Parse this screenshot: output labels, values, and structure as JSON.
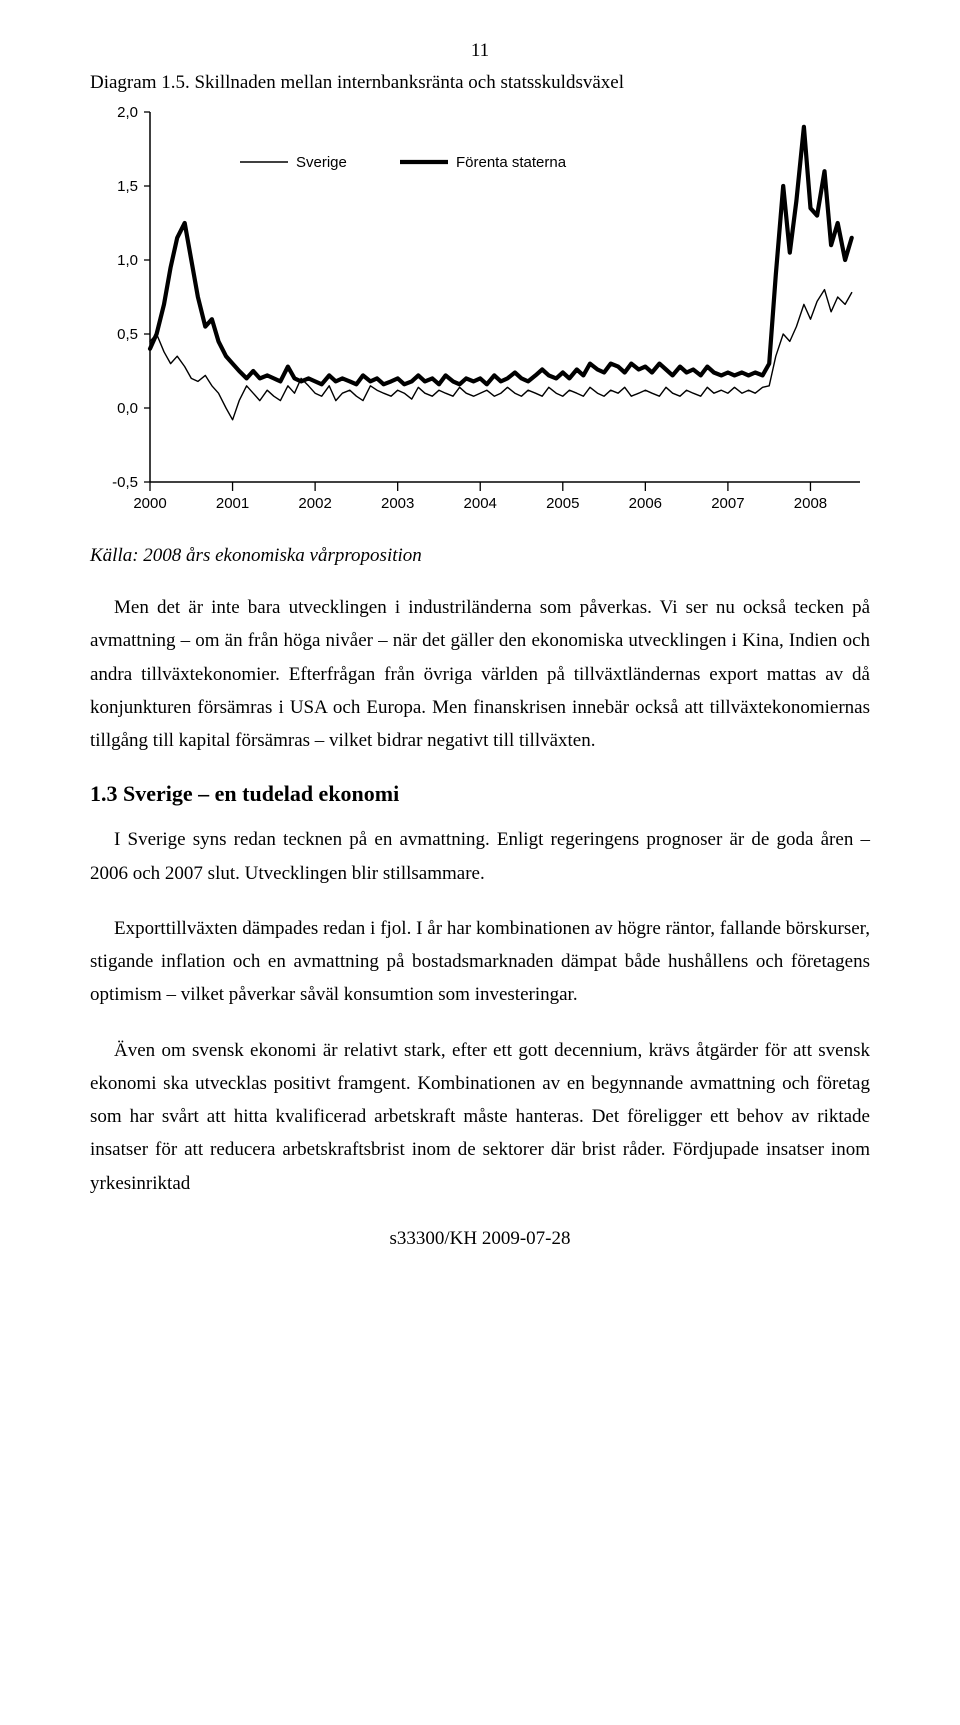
{
  "page_number": "11",
  "caption": "Diagram 1.5. Skillnaden mellan internbanksränta och statsskuldsväxel",
  "source": "Källa: 2008 års ekonomiska vårproposition",
  "chart": {
    "type": "line",
    "background_color": "#ffffff",
    "axis_color": "#000000",
    "tick_font_size": 15,
    "legend_font_size": 15,
    "ylim": [
      -0.5,
      2.0
    ],
    "yticks": [
      -0.5,
      0.0,
      0.5,
      1.0,
      1.5,
      2.0
    ],
    "ylabels": [
      "-0,5",
      "0,0",
      "0,5",
      "1,0",
      "1,5",
      "2,0"
    ],
    "xlim": [
      2000,
      2008.6
    ],
    "xticks": [
      2000,
      2001,
      2002,
      2003,
      2004,
      2005,
      2006,
      2007,
      2008
    ],
    "xlabels": [
      "2000",
      "2001",
      "2002",
      "2003",
      "2004",
      "2005",
      "2006",
      "2007",
      "2008"
    ],
    "legend": [
      {
        "label": "Sverige",
        "stroke_width": 1.4
      },
      {
        "label": "Förenta staterna",
        "stroke_width": 4.2
      }
    ],
    "series": {
      "sverige": {
        "color": "#000000",
        "stroke_width": 1.4,
        "points": [
          [
            2000.0,
            0.45
          ],
          [
            2000.08,
            0.5
          ],
          [
            2000.17,
            0.38
          ],
          [
            2000.25,
            0.3
          ],
          [
            2000.33,
            0.35
          ],
          [
            2000.42,
            0.28
          ],
          [
            2000.5,
            0.2
          ],
          [
            2000.58,
            0.18
          ],
          [
            2000.67,
            0.22
          ],
          [
            2000.75,
            0.15
          ],
          [
            2000.83,
            0.1
          ],
          [
            2000.92,
            0.0
          ],
          [
            2001.0,
            -0.08
          ],
          [
            2001.08,
            0.05
          ],
          [
            2001.17,
            0.15
          ],
          [
            2001.25,
            0.1
          ],
          [
            2001.33,
            0.05
          ],
          [
            2001.42,
            0.12
          ],
          [
            2001.5,
            0.08
          ],
          [
            2001.58,
            0.05
          ],
          [
            2001.67,
            0.15
          ],
          [
            2001.75,
            0.1
          ],
          [
            2001.83,
            0.2
          ],
          [
            2001.92,
            0.15
          ],
          [
            2002.0,
            0.1
          ],
          [
            2002.08,
            0.08
          ],
          [
            2002.17,
            0.15
          ],
          [
            2002.25,
            0.05
          ],
          [
            2002.33,
            0.1
          ],
          [
            2002.42,
            0.12
          ],
          [
            2002.5,
            0.08
          ],
          [
            2002.58,
            0.05
          ],
          [
            2002.67,
            0.15
          ],
          [
            2002.75,
            0.12
          ],
          [
            2002.83,
            0.1
          ],
          [
            2002.92,
            0.08
          ],
          [
            2003.0,
            0.12
          ],
          [
            2003.08,
            0.1
          ],
          [
            2003.17,
            0.06
          ],
          [
            2003.25,
            0.14
          ],
          [
            2003.33,
            0.1
          ],
          [
            2003.42,
            0.08
          ],
          [
            2003.5,
            0.12
          ],
          [
            2003.58,
            0.1
          ],
          [
            2003.67,
            0.08
          ],
          [
            2003.75,
            0.14
          ],
          [
            2003.83,
            0.1
          ],
          [
            2003.92,
            0.08
          ],
          [
            2004.0,
            0.1
          ],
          [
            2004.08,
            0.12
          ],
          [
            2004.17,
            0.08
          ],
          [
            2004.25,
            0.1
          ],
          [
            2004.33,
            0.14
          ],
          [
            2004.42,
            0.1
          ],
          [
            2004.5,
            0.08
          ],
          [
            2004.58,
            0.12
          ],
          [
            2004.67,
            0.1
          ],
          [
            2004.75,
            0.08
          ],
          [
            2004.83,
            0.14
          ],
          [
            2004.92,
            0.1
          ],
          [
            2005.0,
            0.08
          ],
          [
            2005.08,
            0.12
          ],
          [
            2005.17,
            0.1
          ],
          [
            2005.25,
            0.08
          ],
          [
            2005.33,
            0.14
          ],
          [
            2005.42,
            0.1
          ],
          [
            2005.5,
            0.08
          ],
          [
            2005.58,
            0.12
          ],
          [
            2005.67,
            0.1
          ],
          [
            2005.75,
            0.14
          ],
          [
            2005.83,
            0.08
          ],
          [
            2005.92,
            0.1
          ],
          [
            2006.0,
            0.12
          ],
          [
            2006.08,
            0.1
          ],
          [
            2006.17,
            0.08
          ],
          [
            2006.25,
            0.14
          ],
          [
            2006.33,
            0.1
          ],
          [
            2006.42,
            0.08
          ],
          [
            2006.5,
            0.12
          ],
          [
            2006.58,
            0.1
          ],
          [
            2006.67,
            0.08
          ],
          [
            2006.75,
            0.14
          ],
          [
            2006.83,
            0.1
          ],
          [
            2006.92,
            0.12
          ],
          [
            2007.0,
            0.1
          ],
          [
            2007.08,
            0.14
          ],
          [
            2007.17,
            0.1
          ],
          [
            2007.25,
            0.12
          ],
          [
            2007.33,
            0.1
          ],
          [
            2007.42,
            0.14
          ],
          [
            2007.5,
            0.15
          ],
          [
            2007.58,
            0.35
          ],
          [
            2007.67,
            0.5
          ],
          [
            2007.75,
            0.45
          ],
          [
            2007.83,
            0.55
          ],
          [
            2007.92,
            0.7
          ],
          [
            2008.0,
            0.6
          ],
          [
            2008.08,
            0.72
          ],
          [
            2008.17,
            0.8
          ],
          [
            2008.25,
            0.65
          ],
          [
            2008.33,
            0.75
          ],
          [
            2008.42,
            0.7
          ],
          [
            2008.5,
            0.78
          ]
        ]
      },
      "forenta_staterna": {
        "color": "#000000",
        "stroke_width": 4.2,
        "points": [
          [
            2000.0,
            0.4
          ],
          [
            2000.08,
            0.5
          ],
          [
            2000.17,
            0.7
          ],
          [
            2000.25,
            0.95
          ],
          [
            2000.33,
            1.15
          ],
          [
            2000.42,
            1.25
          ],
          [
            2000.5,
            1.0
          ],
          [
            2000.58,
            0.75
          ],
          [
            2000.67,
            0.55
          ],
          [
            2000.75,
            0.6
          ],
          [
            2000.83,
            0.45
          ],
          [
            2000.92,
            0.35
          ],
          [
            2001.0,
            0.3
          ],
          [
            2001.08,
            0.25
          ],
          [
            2001.17,
            0.2
          ],
          [
            2001.25,
            0.25
          ],
          [
            2001.33,
            0.2
          ],
          [
            2001.42,
            0.22
          ],
          [
            2001.5,
            0.2
          ],
          [
            2001.58,
            0.18
          ],
          [
            2001.67,
            0.28
          ],
          [
            2001.75,
            0.2
          ],
          [
            2001.83,
            0.18
          ],
          [
            2001.92,
            0.2
          ],
          [
            2002.0,
            0.18
          ],
          [
            2002.08,
            0.16
          ],
          [
            2002.17,
            0.22
          ],
          [
            2002.25,
            0.18
          ],
          [
            2002.33,
            0.2
          ],
          [
            2002.42,
            0.18
          ],
          [
            2002.5,
            0.16
          ],
          [
            2002.58,
            0.22
          ],
          [
            2002.67,
            0.18
          ],
          [
            2002.75,
            0.2
          ],
          [
            2002.83,
            0.16
          ],
          [
            2002.92,
            0.18
          ],
          [
            2003.0,
            0.2
          ],
          [
            2003.08,
            0.16
          ],
          [
            2003.17,
            0.18
          ],
          [
            2003.25,
            0.22
          ],
          [
            2003.33,
            0.18
          ],
          [
            2003.42,
            0.2
          ],
          [
            2003.5,
            0.16
          ],
          [
            2003.58,
            0.22
          ],
          [
            2003.67,
            0.18
          ],
          [
            2003.75,
            0.16
          ],
          [
            2003.83,
            0.2
          ],
          [
            2003.92,
            0.18
          ],
          [
            2004.0,
            0.2
          ],
          [
            2004.08,
            0.16
          ],
          [
            2004.17,
            0.22
          ],
          [
            2004.25,
            0.18
          ],
          [
            2004.33,
            0.2
          ],
          [
            2004.42,
            0.24
          ],
          [
            2004.5,
            0.2
          ],
          [
            2004.58,
            0.18
          ],
          [
            2004.67,
            0.22
          ],
          [
            2004.75,
            0.26
          ],
          [
            2004.83,
            0.22
          ],
          [
            2004.92,
            0.2
          ],
          [
            2005.0,
            0.24
          ],
          [
            2005.08,
            0.2
          ],
          [
            2005.17,
            0.26
          ],
          [
            2005.25,
            0.22
          ],
          [
            2005.33,
            0.3
          ],
          [
            2005.42,
            0.26
          ],
          [
            2005.5,
            0.24
          ],
          [
            2005.58,
            0.3
          ],
          [
            2005.67,
            0.28
          ],
          [
            2005.75,
            0.24
          ],
          [
            2005.83,
            0.3
          ],
          [
            2005.92,
            0.26
          ],
          [
            2006.0,
            0.28
          ],
          [
            2006.08,
            0.24
          ],
          [
            2006.17,
            0.3
          ],
          [
            2006.25,
            0.26
          ],
          [
            2006.33,
            0.22
          ],
          [
            2006.42,
            0.28
          ],
          [
            2006.5,
            0.24
          ],
          [
            2006.58,
            0.26
          ],
          [
            2006.67,
            0.22
          ],
          [
            2006.75,
            0.28
          ],
          [
            2006.83,
            0.24
          ],
          [
            2006.92,
            0.22
          ],
          [
            2007.0,
            0.24
          ],
          [
            2007.08,
            0.22
          ],
          [
            2007.17,
            0.24
          ],
          [
            2007.25,
            0.22
          ],
          [
            2007.33,
            0.24
          ],
          [
            2007.42,
            0.22
          ],
          [
            2007.5,
            0.3
          ],
          [
            2007.58,
            0.9
          ],
          [
            2007.67,
            1.5
          ],
          [
            2007.75,
            1.05
          ],
          [
            2007.83,
            1.4
          ],
          [
            2007.92,
            1.9
          ],
          [
            2008.0,
            1.35
          ],
          [
            2008.08,
            1.3
          ],
          [
            2008.17,
            1.6
          ],
          [
            2008.25,
            1.1
          ],
          [
            2008.33,
            1.25
          ],
          [
            2008.42,
            1.0
          ],
          [
            2008.5,
            1.15
          ]
        ]
      }
    }
  },
  "body": {
    "p1": "Men det är inte bara utvecklingen i industriländerna som påverkas. Vi ser nu också tecken på avmattning – om än från höga nivåer – när det gäller den ekonomiska utvecklingen i Kina, Indien och andra tillväxtekonomier. Efterfrågan från övriga världen på tillväxtländernas export mattas av då konjunkturen försämras i USA och Europa. Men finanskrisen innebär också att tillväxtekonomiernas tillgång till kapital försämras – vilket bidrar negativt till tillväxten."
  },
  "section_heading": "1.3 Sverige – en tudelad ekonomi",
  "body2": {
    "p2a": "I Sverige syns redan tecknen på en avmattning. Enligt regeringens prognoser är de goda åren – 2006 och 2007 slut. Utvecklingen blir stillsammare.",
    "p2b": "Exporttillväxten dämpades redan i fjol. I år har kombinationen av högre räntor, fallande börskurser, stigande inflation och en avmattning på bostadsmarknaden dämpat både hushållens och företagens optimism – vilket påverkar såväl konsumtion som investeringar.",
    "p2c": "Även om svensk ekonomi är relativt stark, efter ett gott decennium, krävs åtgärder för att svensk ekonomi ska utvecklas positivt framgent. Kombinationen av en begynnande avmattning och företag som har svårt att hitta kvalificerad arbetskraft måste hanteras. Det föreligger ett behov av riktade insatser för att reducera arbetskraftsbrist inom de sektorer där brist råder. Fördjupade insatser inom yrkesinriktad"
  },
  "footer": "s33300/KH 2009-07-28"
}
